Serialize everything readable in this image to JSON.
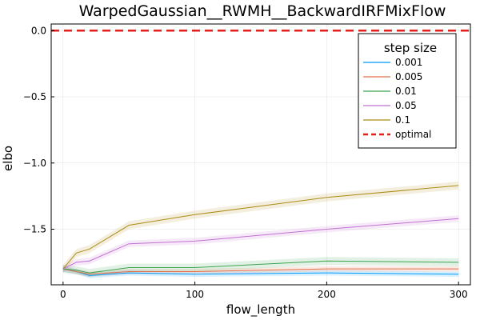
{
  "chart_data": {
    "type": "line",
    "title": "WarpedGaussian__RWMH__BackwardIRFMixFlow",
    "xlabel": "flow_length",
    "ylabel": "elbo",
    "xlim": [
      -9,
      309
    ],
    "ylim": [
      -1.92,
      0.05
    ],
    "xticks": [
      0,
      100,
      200,
      300
    ],
    "xtick_labels": [
      "0",
      "100",
      "200",
      "300"
    ],
    "yticks": [
      0.0,
      -0.5,
      -1.0,
      -1.5
    ],
    "ytick_labels": [
      "0.0",
      "−0.5",
      "−1.0",
      "−1.5"
    ],
    "grid": true,
    "legend": {
      "title": "step size",
      "placement": "top-right"
    },
    "x": [
      0,
      10,
      20,
      50,
      100,
      200,
      300
    ],
    "series": [
      {
        "name": "0.001",
        "color": "#009AFA",
        "values": [
          -1.8,
          -1.82,
          -1.85,
          -1.83,
          -1.84,
          -1.83,
          -1.84
        ],
        "band": 0.02
      },
      {
        "name": "0.005",
        "color": "#E36F47",
        "values": [
          -1.8,
          -1.82,
          -1.84,
          -1.82,
          -1.82,
          -1.8,
          -1.8
        ],
        "band": 0.02
      },
      {
        "name": "0.01",
        "color": "#3EA44E",
        "values": [
          -1.8,
          -1.81,
          -1.83,
          -1.79,
          -1.79,
          -1.74,
          -1.75
        ],
        "band": 0.03
      },
      {
        "name": "0.05",
        "color": "#C371D2",
        "values": [
          -1.8,
          -1.75,
          -1.74,
          -1.61,
          -1.59,
          -1.5,
          -1.42
        ],
        "band": 0.025
      },
      {
        "name": "0.1",
        "color": "#AC8D18",
        "values": [
          -1.8,
          -1.68,
          -1.65,
          -1.47,
          -1.39,
          -1.26,
          -1.17
        ],
        "band": 0.03
      }
    ],
    "reference_line": {
      "name": "optimal",
      "y": 0.0,
      "color": "#E0201B",
      "style": "dashed"
    }
  }
}
